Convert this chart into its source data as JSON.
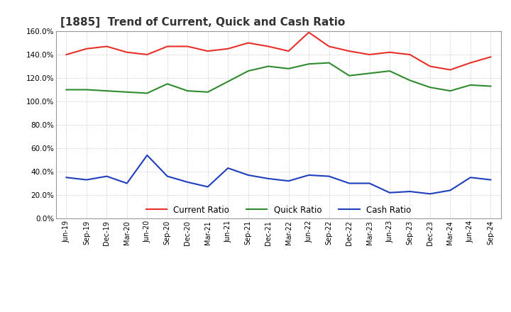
{
  "title": "[1885]  Trend of Current, Quick and Cash Ratio",
  "x_labels": [
    "Jun-19",
    "Sep-19",
    "Dec-19",
    "Mar-20",
    "Jun-20",
    "Sep-20",
    "Dec-20",
    "Mar-21",
    "Jun-21",
    "Sep-21",
    "Dec-21",
    "Mar-22",
    "Jun-22",
    "Sep-22",
    "Dec-22",
    "Mar-23",
    "Jun-23",
    "Sep-23",
    "Dec-23",
    "Mar-24",
    "Jun-24",
    "Sep-24"
  ],
  "current_ratio": [
    1.4,
    1.45,
    1.47,
    1.42,
    1.4,
    1.47,
    1.47,
    1.43,
    1.45,
    1.5,
    1.47,
    1.43,
    1.59,
    1.47,
    1.43,
    1.4,
    1.42,
    1.4,
    1.3,
    1.27,
    1.33,
    1.38
  ],
  "quick_ratio": [
    1.1,
    1.1,
    1.09,
    1.08,
    1.07,
    1.15,
    1.09,
    1.08,
    1.17,
    1.26,
    1.3,
    1.28,
    1.32,
    1.33,
    1.22,
    1.24,
    1.26,
    1.18,
    1.12,
    1.09,
    1.14,
    1.13
  ],
  "cash_ratio": [
    0.35,
    0.33,
    0.36,
    0.3,
    0.54,
    0.36,
    0.31,
    0.27,
    0.43,
    0.37,
    0.34,
    0.32,
    0.37,
    0.36,
    0.3,
    0.3,
    0.22,
    0.23,
    0.21,
    0.24,
    0.35,
    0.33
  ],
  "current_color": "#e8302a",
  "quick_color": "#2e8b2e",
  "cash_color": "#1e3ebd",
  "ylim": [
    0.0,
    1.6
  ],
  "yticks": [
    0.0,
    0.2,
    0.4,
    0.6,
    0.8,
    1.0,
    1.2,
    1.4,
    1.6
  ],
  "background_color": "#ffffff",
  "grid_color": "#aaaaaa",
  "title_fontsize": 11,
  "legend_labels": [
    "Current Ratio",
    "Quick Ratio",
    "Cash Ratio"
  ]
}
